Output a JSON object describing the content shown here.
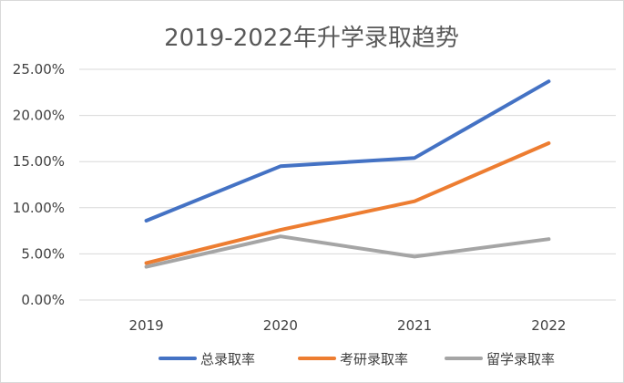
{
  "chart_data": {
    "type": "line",
    "title": "2019-2022年升学录取趋势",
    "categories": [
      "2019",
      "2020",
      "2021",
      "2022"
    ],
    "y_tick_labels": [
      "25.00%",
      "20.00%",
      "15.00%",
      "10.00%",
      "5.00%",
      "0.00%"
    ],
    "y_ticks": [
      25,
      20,
      15,
      10,
      5,
      0
    ],
    "ylim": [
      0,
      25
    ],
    "xlabel": "",
    "ylabel": "",
    "grid": true,
    "legend_position": "bottom",
    "series": [
      {
        "name": "总录取率",
        "color": "#4472C4",
        "values": [
          8.6,
          14.5,
          15.4,
          23.7
        ]
      },
      {
        "name": "考研录取率",
        "color": "#ED7D31",
        "values": [
          4.0,
          7.6,
          10.7,
          17.0
        ]
      },
      {
        "name": "留学录取率",
        "color": "#A5A5A5",
        "values": [
          3.6,
          6.9,
          4.7,
          6.6
        ]
      }
    ]
  }
}
